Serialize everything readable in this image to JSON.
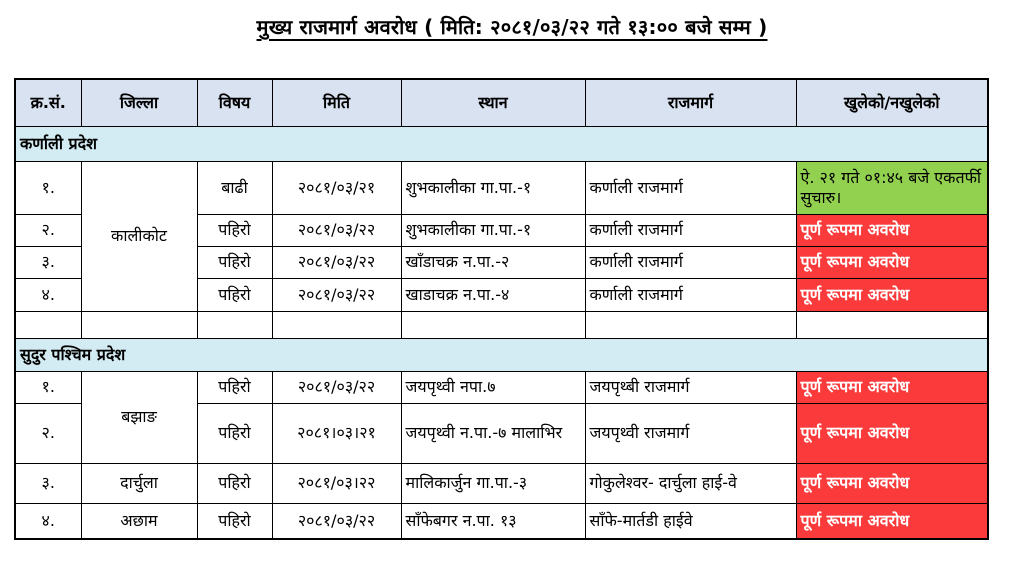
{
  "title": "मुख्य राजमार्ग अवरोध ( मिति: २०८१/०३/२२ गते १३:०० बजे सम्म )",
  "colors": {
    "header_bg": "#D9E2F1",
    "section_bg": "#D3EBF2",
    "open_bg": "#92D050",
    "open_text": "#000000",
    "blocked_bg": "#FB3B3B",
    "blocked_text": "#FFFFFF"
  },
  "table": {
    "headers": [
      "क्र.सं.",
      "जिल्ला",
      "विषय",
      "मिति",
      "स्थान",
      "राजमार्ग",
      "खुलेको/नखुलेको"
    ],
    "rows": [
      {
        "type": "section",
        "label": "कर्णाली प्रदेश"
      },
      {
        "type": "data",
        "sn": "१.",
        "district": "कालीकोट",
        "district_span": 4,
        "subject": "बाढी",
        "date": "२०८१/०३/२१",
        "place": "शुभकालीका गा.पा.-१",
        "highway": "कर्णाली राजमार्ग",
        "status": "ऐ. २१ गते ०१:४५ बजे एकतर्फी सुचारु।",
        "status_type": "open"
      },
      {
        "type": "data",
        "sn": "२.",
        "subject": "पहिरो",
        "date": "२०८१/०३/२२",
        "place": "शुभकालीका गा.पा.-१",
        "highway": "कर्णाली राजमार्ग",
        "status": "पूर्ण रूपमा अवरोध",
        "status_type": "blocked"
      },
      {
        "type": "data",
        "sn": "३.",
        "subject": "पहिरो",
        "date": "२०८१/०३/२२",
        "place": "खाँडाचक्र न.पा.-२",
        "highway": "कर्णाली राजमार्ग",
        "status": "पूर्ण रूपमा अवरोध",
        "status_type": "blocked"
      },
      {
        "type": "data",
        "sn": "४.",
        "subject": "पहिरो",
        "date": "२०८१/०३/२२",
        "place": "खाडाचक्र न.पा.-४",
        "highway": "कर्णाली राजमार्ग",
        "status": "पूर्ण रूपमा अवरोध",
        "status_type": "blocked"
      },
      {
        "type": "empty"
      },
      {
        "type": "section",
        "label": "सुदुर पश्चिम प्रदेश"
      },
      {
        "type": "data",
        "sn": "१.",
        "district": "बझाङ",
        "district_span": 2,
        "subject": "पहिरो",
        "date": "२०८१/०३/२२",
        "place": "जयपृथ्वी नपा.७",
        "highway": "जयपृथ्बी राजमार्ग",
        "status": "पूर्ण रूपमा अवरोध",
        "status_type": "blocked"
      },
      {
        "type": "data",
        "sn": "२.",
        "subject": "पहिरो",
        "date": "२०८१।०३।२१",
        "place": "जयपृथ्वी न.पा.-७ मालाभिर",
        "highway": "जयपृथ्वी राजमार्ग",
        "status": "पूर्ण रूपमा अवरोध",
        "status_type": "blocked"
      },
      {
        "type": "data",
        "sn": "३.",
        "district": "दार्चुला",
        "district_span": 1,
        "subject": "पहिरो",
        "date": "२०८१/०३।२२",
        "place": "मालिकार्जुन गा.पा.-३",
        "highway": "गोकुलेश्वर- दार्चुला हाई-वे",
        "status": "पूर्ण रूपमा अवरोध",
        "status_type": "blocked"
      },
      {
        "type": "data",
        "sn": "४.",
        "district": "अछाम",
        "district_span": 1,
        "subject": "पहिरो",
        "date": "२०८१/०३/२२",
        "place": "साँफेबगर न.पा. १३",
        "highway": "साँफे-मार्तडी हाईवे",
        "status": "पूर्ण रूपमा अवरोध",
        "status_type": "blocked"
      }
    ]
  }
}
